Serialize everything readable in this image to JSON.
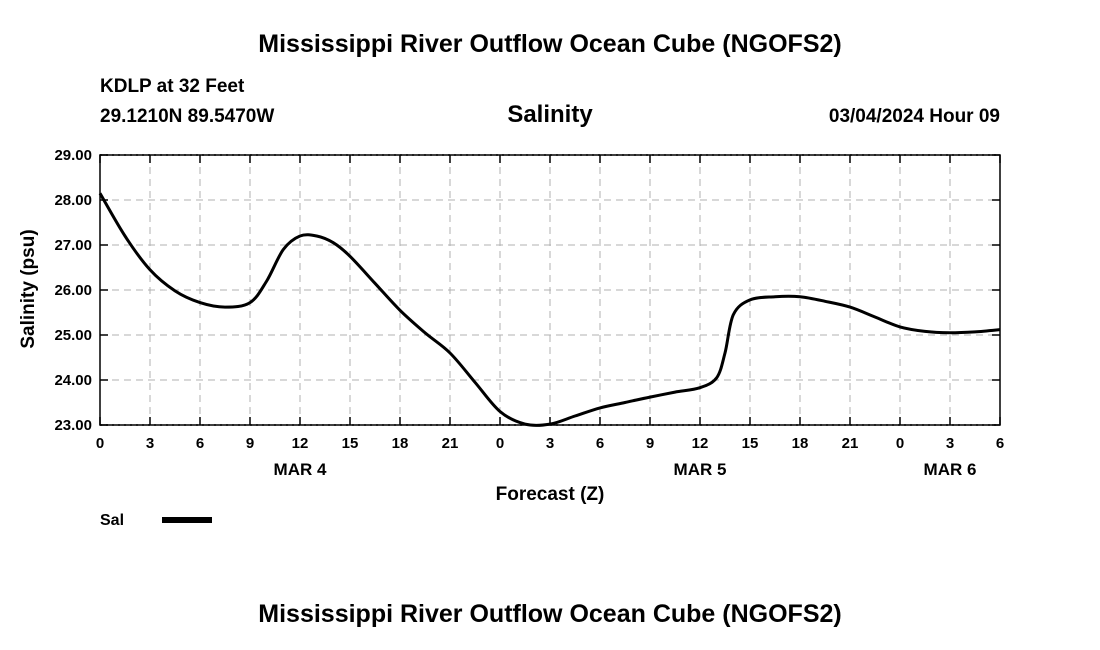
{
  "header": {
    "title": "Mississippi River Outflow Ocean Cube (NGOFS2)",
    "station": "KDLP at 32 Feet",
    "coords": "29.1210N  89.5470W",
    "variable": "Salinity",
    "datetime": "03/04/2024 Hour 09"
  },
  "footer": {
    "title": "Mississippi River Outflow Ocean Cube (NGOFS2)"
  },
  "chart_data": {
    "type": "line",
    "title": "Salinity",
    "xlabel": "Forecast (Z)",
    "ylabel": "Salinity (psu)",
    "xlim": [
      0,
      54
    ],
    "ylim": [
      23.0,
      29.0
    ],
    "grid": true,
    "y_ticks": [
      "23.00",
      "24.00",
      "25.00",
      "26.00",
      "27.00",
      "28.00",
      "29.00"
    ],
    "x_tick_labels": [
      "0",
      "3",
      "6",
      "9",
      "12",
      "15",
      "18",
      "21",
      "0",
      "3",
      "6",
      "9",
      "12",
      "15",
      "18",
      "21",
      "0",
      "3",
      "6"
    ],
    "day_labels": [
      {
        "label": "MAR 4",
        "hour": 12
      },
      {
        "label": "MAR 5",
        "hour": 36
      },
      {
        "label": "MAR 6",
        "hour": 51
      }
    ],
    "legend": {
      "position": "bottom-left",
      "entries": [
        "Sal"
      ]
    },
    "series": [
      {
        "name": "Sal",
        "color": "#000000",
        "x": [
          0,
          1.5,
          3,
          4.5,
          6,
          7.5,
          9,
          10,
          11,
          12,
          13,
          14,
          15,
          16.5,
          18,
          19.5,
          21,
          22.5,
          24,
          25.5,
          27,
          28.5,
          30,
          31.5,
          33,
          34.5,
          36,
          37,
          37.5,
          38,
          39,
          40.5,
          42,
          43.5,
          45,
          46.5,
          48,
          49.5,
          51,
          52.5,
          54
        ],
        "y": [
          28.15,
          27.2,
          26.45,
          25.98,
          25.72,
          25.62,
          25.72,
          26.2,
          26.9,
          27.2,
          27.2,
          27.05,
          26.75,
          26.15,
          25.55,
          25.05,
          24.6,
          23.95,
          23.3,
          23.02,
          23.02,
          23.2,
          23.38,
          23.5,
          23.62,
          23.73,
          23.83,
          24.05,
          24.6,
          25.45,
          25.78,
          25.85,
          25.85,
          25.75,
          25.62,
          25.4,
          25.18,
          25.08,
          25.05,
          25.07,
          25.12
        ]
      }
    ]
  }
}
